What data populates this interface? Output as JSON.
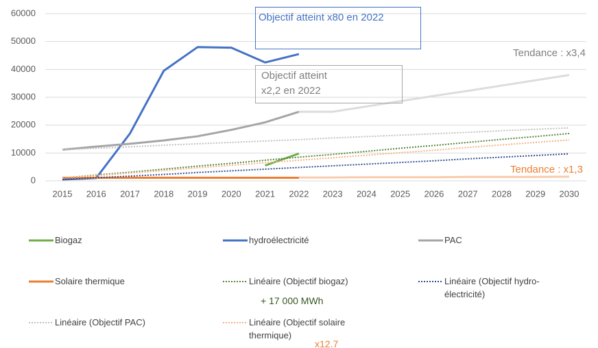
{
  "chart_data": {
    "type": "line",
    "categories": [
      "2015",
      "2016",
      "2017",
      "2018",
      "2019",
      "2020",
      "2021",
      "2022",
      "2023",
      "2024",
      "2025",
      "2026",
      "2027",
      "2028",
      "2029",
      "2030"
    ],
    "ylim": [
      0,
      60000
    ],
    "yticks": [
      0,
      10000,
      20000,
      30000,
      40000,
      50000,
      60000
    ],
    "grid": true,
    "series": [
      {
        "name": "Biogaz",
        "color": "#70ad47",
        "values": [
          null,
          null,
          null,
          null,
          null,
          null,
          5500,
          9800,
          null,
          null,
          null,
          null,
          null,
          null,
          null,
          null
        ]
      },
      {
        "name": "hydroélectricité",
        "color": "#4472c4",
        "values": [
          500,
          1000,
          17000,
          39500,
          48000,
          47800,
          42500,
          45500,
          null,
          null,
          null,
          null,
          null,
          null,
          null,
          null
        ]
      },
      {
        "name": "PAC",
        "color": "#a5a5a5",
        "values": [
          11200,
          12300,
          13300,
          14500,
          16000,
          18300,
          21000,
          24800,
          null,
          null,
          null,
          null,
          null,
          null,
          null,
          null
        ]
      },
      {
        "name": "Solaire thermique",
        "color": "#ed7d31",
        "values": [
          1100,
          1100,
          1100,
          1100,
          1100,
          1100,
          1100,
          1100,
          null,
          null,
          null,
          null,
          null,
          null,
          null,
          null
        ]
      },
      {
        "name": "Linéaire (Objectif biogaz)",
        "color": "#548235",
        "dotted": true,
        "values": [
          1000,
          2100,
          3100,
          4200,
          5300,
          6300,
          7400,
          8500,
          9500,
          10600,
          11700,
          12700,
          13800,
          14900,
          15900,
          17000
        ]
      },
      {
        "name": "Linéaire (Objectif hydro-électricité)",
        "color": "#2f4b8f",
        "dotted": true,
        "values": [
          500,
          1100,
          1700,
          2300,
          3000,
          3600,
          4200,
          4800,
          5400,
          6000,
          6600,
          7200,
          7900,
          8500,
          9100,
          9700
        ]
      },
      {
        "name": "Linéaire (Objectif PAC)",
        "color": "#bfbfbf",
        "dotted": true,
        "values": [
          11200,
          11700,
          12200,
          12800,
          13300,
          13800,
          14300,
          14800,
          15400,
          15900,
          16400,
          16900,
          17400,
          18000,
          18500,
          19000
        ]
      },
      {
        "name": "Linéaire (Objectif solaire thermique)",
        "color": "#f4b183",
        "dotted": true,
        "values": [
          1000,
          1900,
          2800,
          3700,
          4700,
          5600,
          6500,
          7400,
          8300,
          9200,
          10100,
          11000,
          12000,
          12900,
          13800,
          14700
        ]
      },
      {
        "color": "#dcdcdc",
        "values": [
          null,
          null,
          null,
          null,
          null,
          null,
          null,
          24800,
          24800,
          26700,
          28600,
          30500,
          32300,
          34200,
          36100,
          38000
        ]
      },
      {
        "color": "#f8cbad",
        "values": [
          null,
          null,
          null,
          null,
          null,
          null,
          null,
          1200,
          1200,
          1300,
          1300,
          1300,
          1400,
          1400,
          1400,
          1500
        ]
      }
    ],
    "annotations": [
      {
        "text": "Objectif atteint x80 en 2022",
        "color": "#4472c4"
      },
      {
        "text": "Objectif atteint x2,2 en 2022",
        "color": "#7f7f7f"
      },
      {
        "text": "Tendance : x3,4",
        "color": "#7f7f7f"
      },
      {
        "text": "Tendance : x1,3",
        "color": "#ed7d31"
      },
      {
        "text": "+ 17 000 MWh",
        "color": "#375623"
      },
      {
        "text": "x12.7",
        "color": "#ed7d31"
      }
    ]
  }
}
